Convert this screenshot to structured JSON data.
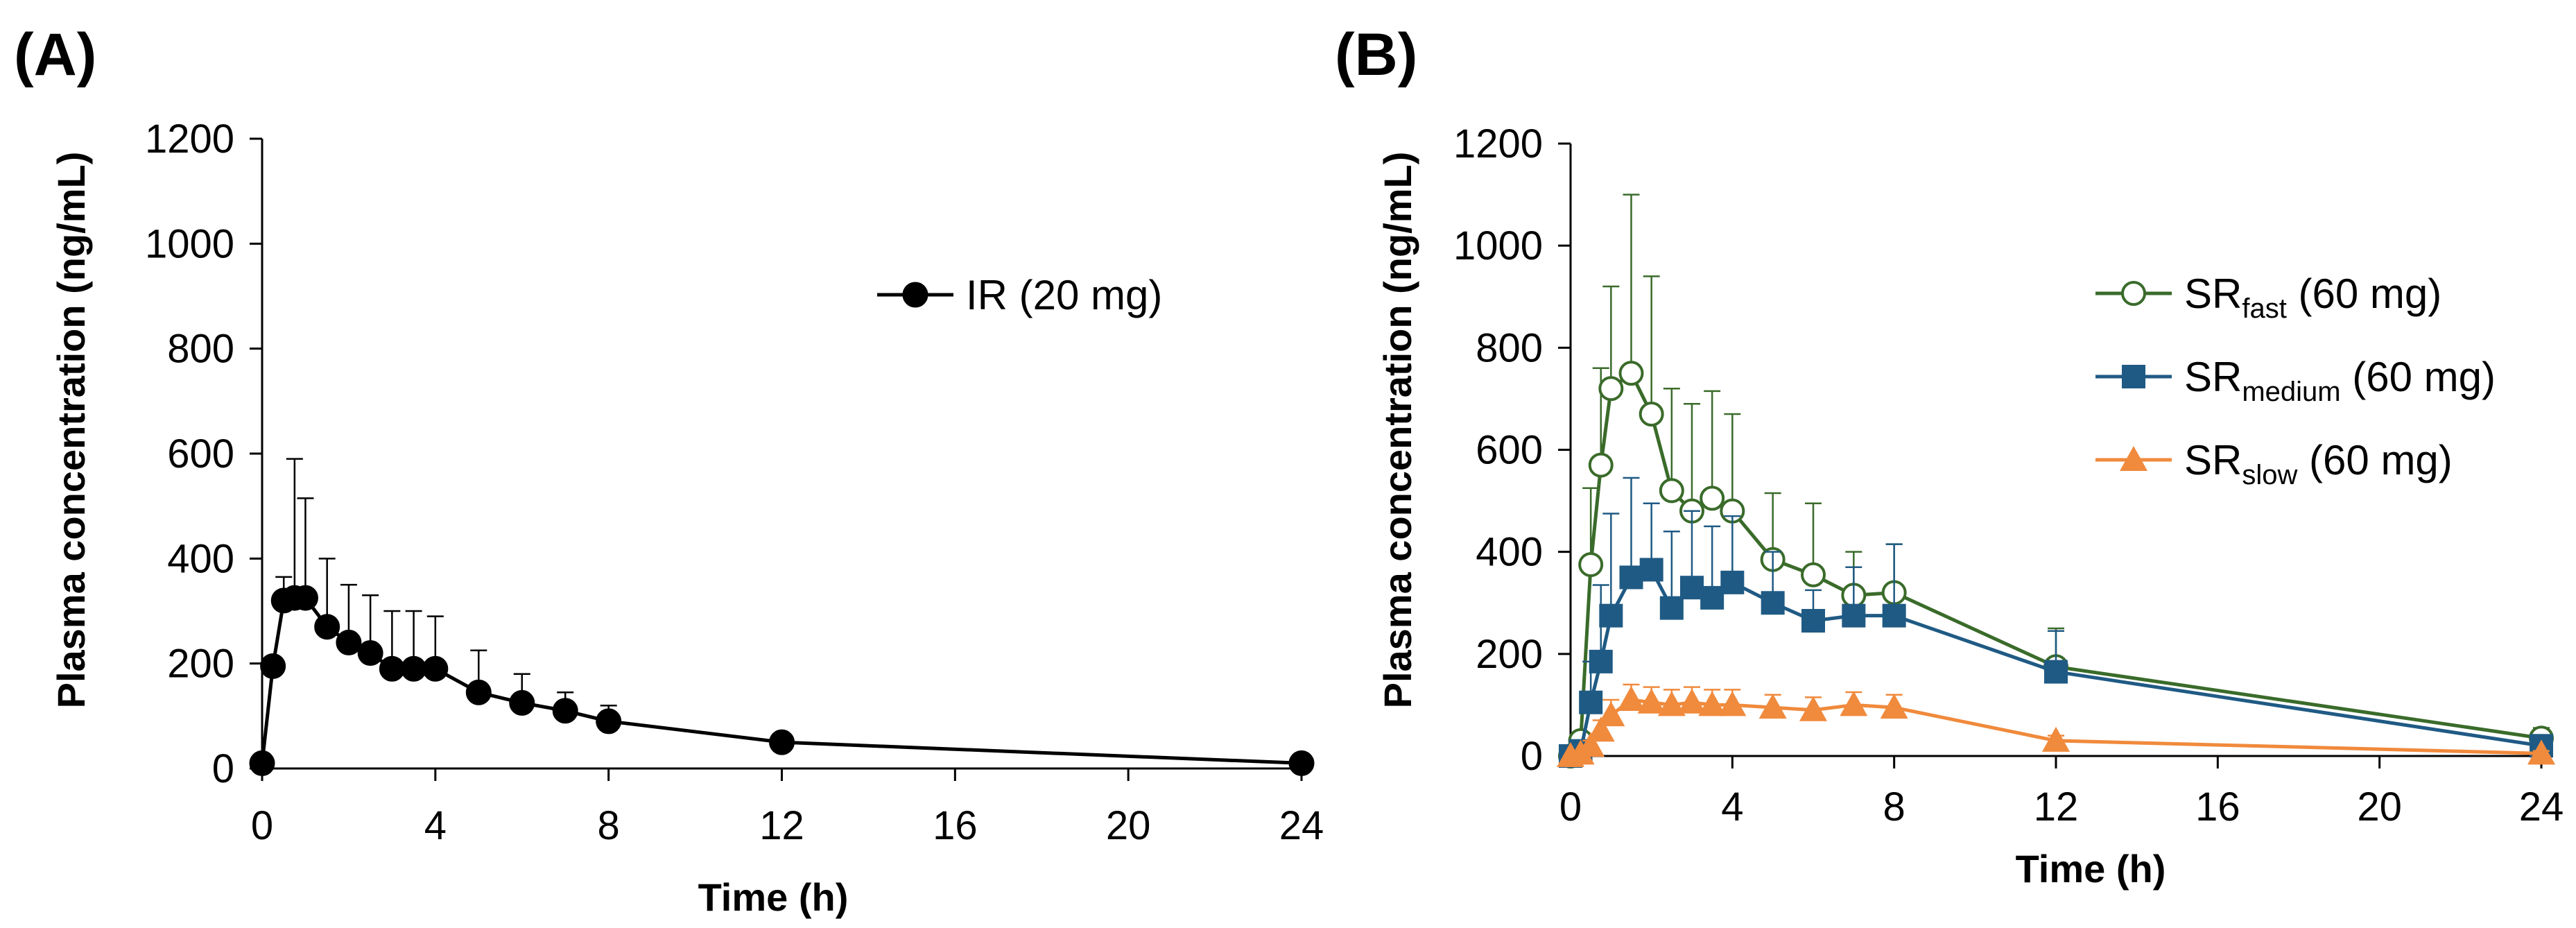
{
  "panels": {
    "a_label": "(A)",
    "b_label": "(B)"
  },
  "colors": {
    "ir": "#000000",
    "fast": "#3a6b2a",
    "medium": "#1f5a84",
    "slow": "#f08a3c"
  },
  "chart_data": [
    {
      "type": "line",
      "panel": "(A)",
      "xlabel": "Time (h)",
      "ylabel": "Plasma concentration (ng/mL)",
      "xlim": [
        0,
        24
      ],
      "ylim": [
        0,
        1200
      ],
      "xticks": [
        0,
        4,
        8,
        12,
        16,
        20,
        24
      ],
      "yticks": [
        0,
        200,
        400,
        600,
        800,
        1000,
        1200
      ],
      "legend_position": "top-right",
      "series": [
        {
          "name": "IR (20 mg)",
          "label_main": "IR (20 mg)",
          "label_sub": "",
          "label_tail": "",
          "marker": "filled-circle",
          "color": "#000000",
          "x": [
            0,
            0.25,
            0.5,
            0.75,
            1,
            1.5,
            2,
            2.5,
            3,
            3.5,
            4,
            5,
            6,
            7,
            8,
            12,
            24
          ],
          "y": [
            10,
            195,
            320,
            325,
            325,
            270,
            240,
            220,
            190,
            190,
            190,
            145,
            125,
            110,
            90,
            50,
            10
          ],
          "err": [
            0,
            0,
            45,
            265,
            190,
            130,
            110,
            110,
            110,
            110,
            100,
            80,
            55,
            35,
            30,
            10,
            5
          ]
        }
      ]
    },
    {
      "type": "line",
      "panel": "(B)",
      "xlabel": "Time (h)",
      "ylabel": "Plasma concentration (ng/mL)",
      "xlim": [
        0,
        24
      ],
      "ylim": [
        0,
        1200
      ],
      "xticks": [
        0,
        4,
        8,
        12,
        16,
        20,
        24
      ],
      "yticks": [
        0,
        200,
        400,
        600,
        800,
        1000,
        1200
      ],
      "legend_position": "top-right",
      "series": [
        {
          "name": "SRfast (60 mg)",
          "label_main": "SR",
          "label_sub": "fast",
          "label_tail": " (60 mg)",
          "marker": "open-circle",
          "color": "#3a6b2a",
          "x": [
            0,
            0.25,
            0.5,
            0.75,
            1,
            1.5,
            2,
            2.5,
            3,
            3.5,
            4,
            5,
            6,
            7,
            8,
            12,
            24
          ],
          "y": [
            0,
            30,
            375,
            570,
            720,
            750,
            670,
            520,
            480,
            505,
            480,
            385,
            355,
            315,
            320,
            175,
            35
          ],
          "err": [
            0,
            0,
            150,
            190,
            200,
            350,
            270,
            200,
            210,
            210,
            190,
            130,
            140,
            85,
            95,
            75,
            20
          ]
        },
        {
          "name": "SRmedium (60 mg)",
          "label_main": "SR",
          "label_sub": "medium",
          "label_tail": " (60 mg)",
          "marker": "filled-square",
          "color": "#1f5a84",
          "x": [
            0,
            0.25,
            0.5,
            0.75,
            1,
            1.5,
            2,
            2.5,
            3,
            3.5,
            4,
            5,
            6,
            7,
            8,
            12,
            24
          ],
          "y": [
            0,
            10,
            105,
            185,
            275,
            350,
            365,
            290,
            330,
            310,
            340,
            300,
            265,
            275,
            275,
            165,
            20
          ],
          "err": [
            0,
            0,
            80,
            150,
            200,
            195,
            130,
            150,
            150,
            140,
            130,
            100,
            60,
            95,
            140,
            80,
            15
          ]
        },
        {
          "name": "SRslow (60 mg)",
          "label_main": "SR",
          "label_sub": "slow",
          "label_tail": " (60 mg)",
          "marker": "filled-triangle",
          "color": "#f08a3c",
          "x": [
            0,
            0.25,
            0.5,
            0.75,
            1,
            1.5,
            2,
            2.5,
            3,
            3.5,
            4,
            5,
            6,
            7,
            8,
            12,
            24
          ],
          "y": [
            0,
            5,
            20,
            50,
            80,
            110,
            105,
            100,
            105,
            100,
            100,
            95,
            90,
            100,
            95,
            30,
            5
          ],
          "err": [
            0,
            0,
            10,
            20,
            30,
            30,
            30,
            30,
            30,
            30,
            30,
            25,
            25,
            25,
            25,
            10,
            5
          ]
        }
      ]
    }
  ]
}
